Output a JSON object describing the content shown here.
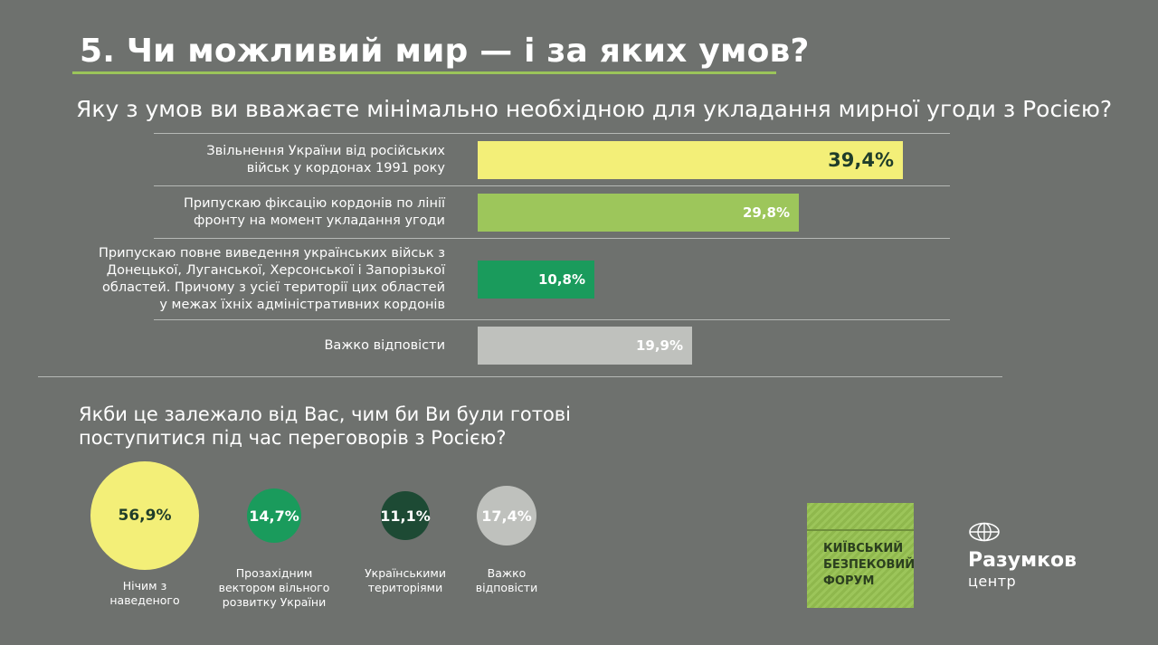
{
  "header": {
    "title": "5. Чи можливий мир — і за яких умов?"
  },
  "question1": "Яку з умов ви вважаєте мінімально необхідною для укладання мирної угоди з Росією?",
  "question2_line1": "Якби це залежало від Вас, чим би Ви були готові",
  "question2_line2": "поступитися під час переговорів з Росією?",
  "bars": [
    {
      "label_lines": [
        "Звільнення України від російських",
        "військ у кордонах 1991 року"
      ],
      "value": "39,4%",
      "color": "#f3ef78"
    },
    {
      "label_lines": [
        "Припускаю фіксацію кордонів по лінії",
        "фронту на момент укладання угоди"
      ],
      "value": "29,8%",
      "color": "#9dc65b"
    },
    {
      "label_lines": [
        "Припускаю повне виведення українських військ з",
        "Донецької, Луганської, Херсонської і Запорізької",
        "областей. Причому з усієї території цих областей",
        "у межах їхніх адміністративних кордонів"
      ],
      "value": "10,8%",
      "color": "#1a9b5c"
    },
    {
      "label_lines": [
        "Важко відповісти"
      ],
      "value": "19,9%",
      "color": "#bfc1bd"
    }
  ],
  "bubbles": [
    {
      "value": "56,9%",
      "caption_lines": [
        "Нічим з",
        "наведеного"
      ],
      "color": "#f3ef78",
      "text_color": "#1f3d2a"
    },
    {
      "value": "14,7%",
      "caption_lines": [
        "Прозахідним",
        "вектором вільного",
        "розвитку України"
      ],
      "color": "#1a9b5c",
      "text_color": "#ffffff"
    },
    {
      "value": "11,1%",
      "caption_lines": [
        "Українськими",
        "територіями"
      ],
      "color": "#1d4a34",
      "text_color": "#ffffff"
    },
    {
      "value": "17,4%",
      "caption_lines": [
        "Важко",
        "відповісти"
      ],
      "color": "#bfc1bd",
      "text_color": "#ffffff"
    }
  ],
  "chart_data": [
    {
      "type": "bar",
      "title": "Яку з умов ви вважаєте мінімально необхідною для укладання мирної угоди з Росією?",
      "categories": [
        "Звільнення України від російських військ у кордонах 1991 року",
        "Припускаю фіксацію кордонів по лінії фронту на момент укладання угоди",
        "Припускаю повне виведення українських військ з Донецької, Луганської, Херсонської і Запорізької областей. Причому з усієї території цих областей у межах їхніх адміністративних кордонів",
        "Важко відповісти"
      ],
      "values": [
        39.4,
        29.8,
        10.8,
        19.9
      ],
      "orientation": "horizontal",
      "unit": "%"
    },
    {
      "type": "bubble",
      "title": "Якби це залежало від Вас, чим би Ви були готові поступитися під час переговорів з Росією?",
      "categories": [
        "Нічим з наведеного",
        "Прозахідним вектором вільного розвитку України",
        "Українськими територіями",
        "Важко відповісти"
      ],
      "values": [
        56.9,
        14.7,
        11.1,
        17.4
      ],
      "unit": "%"
    }
  ],
  "logos": {
    "forum_lines": [
      "КИЇВСЬКИЙ",
      "БЕЗПЕКОВИЙ",
      "ФОРУМ"
    ],
    "razumkov_name": "Разумков",
    "razumkov_sub": "центр"
  }
}
